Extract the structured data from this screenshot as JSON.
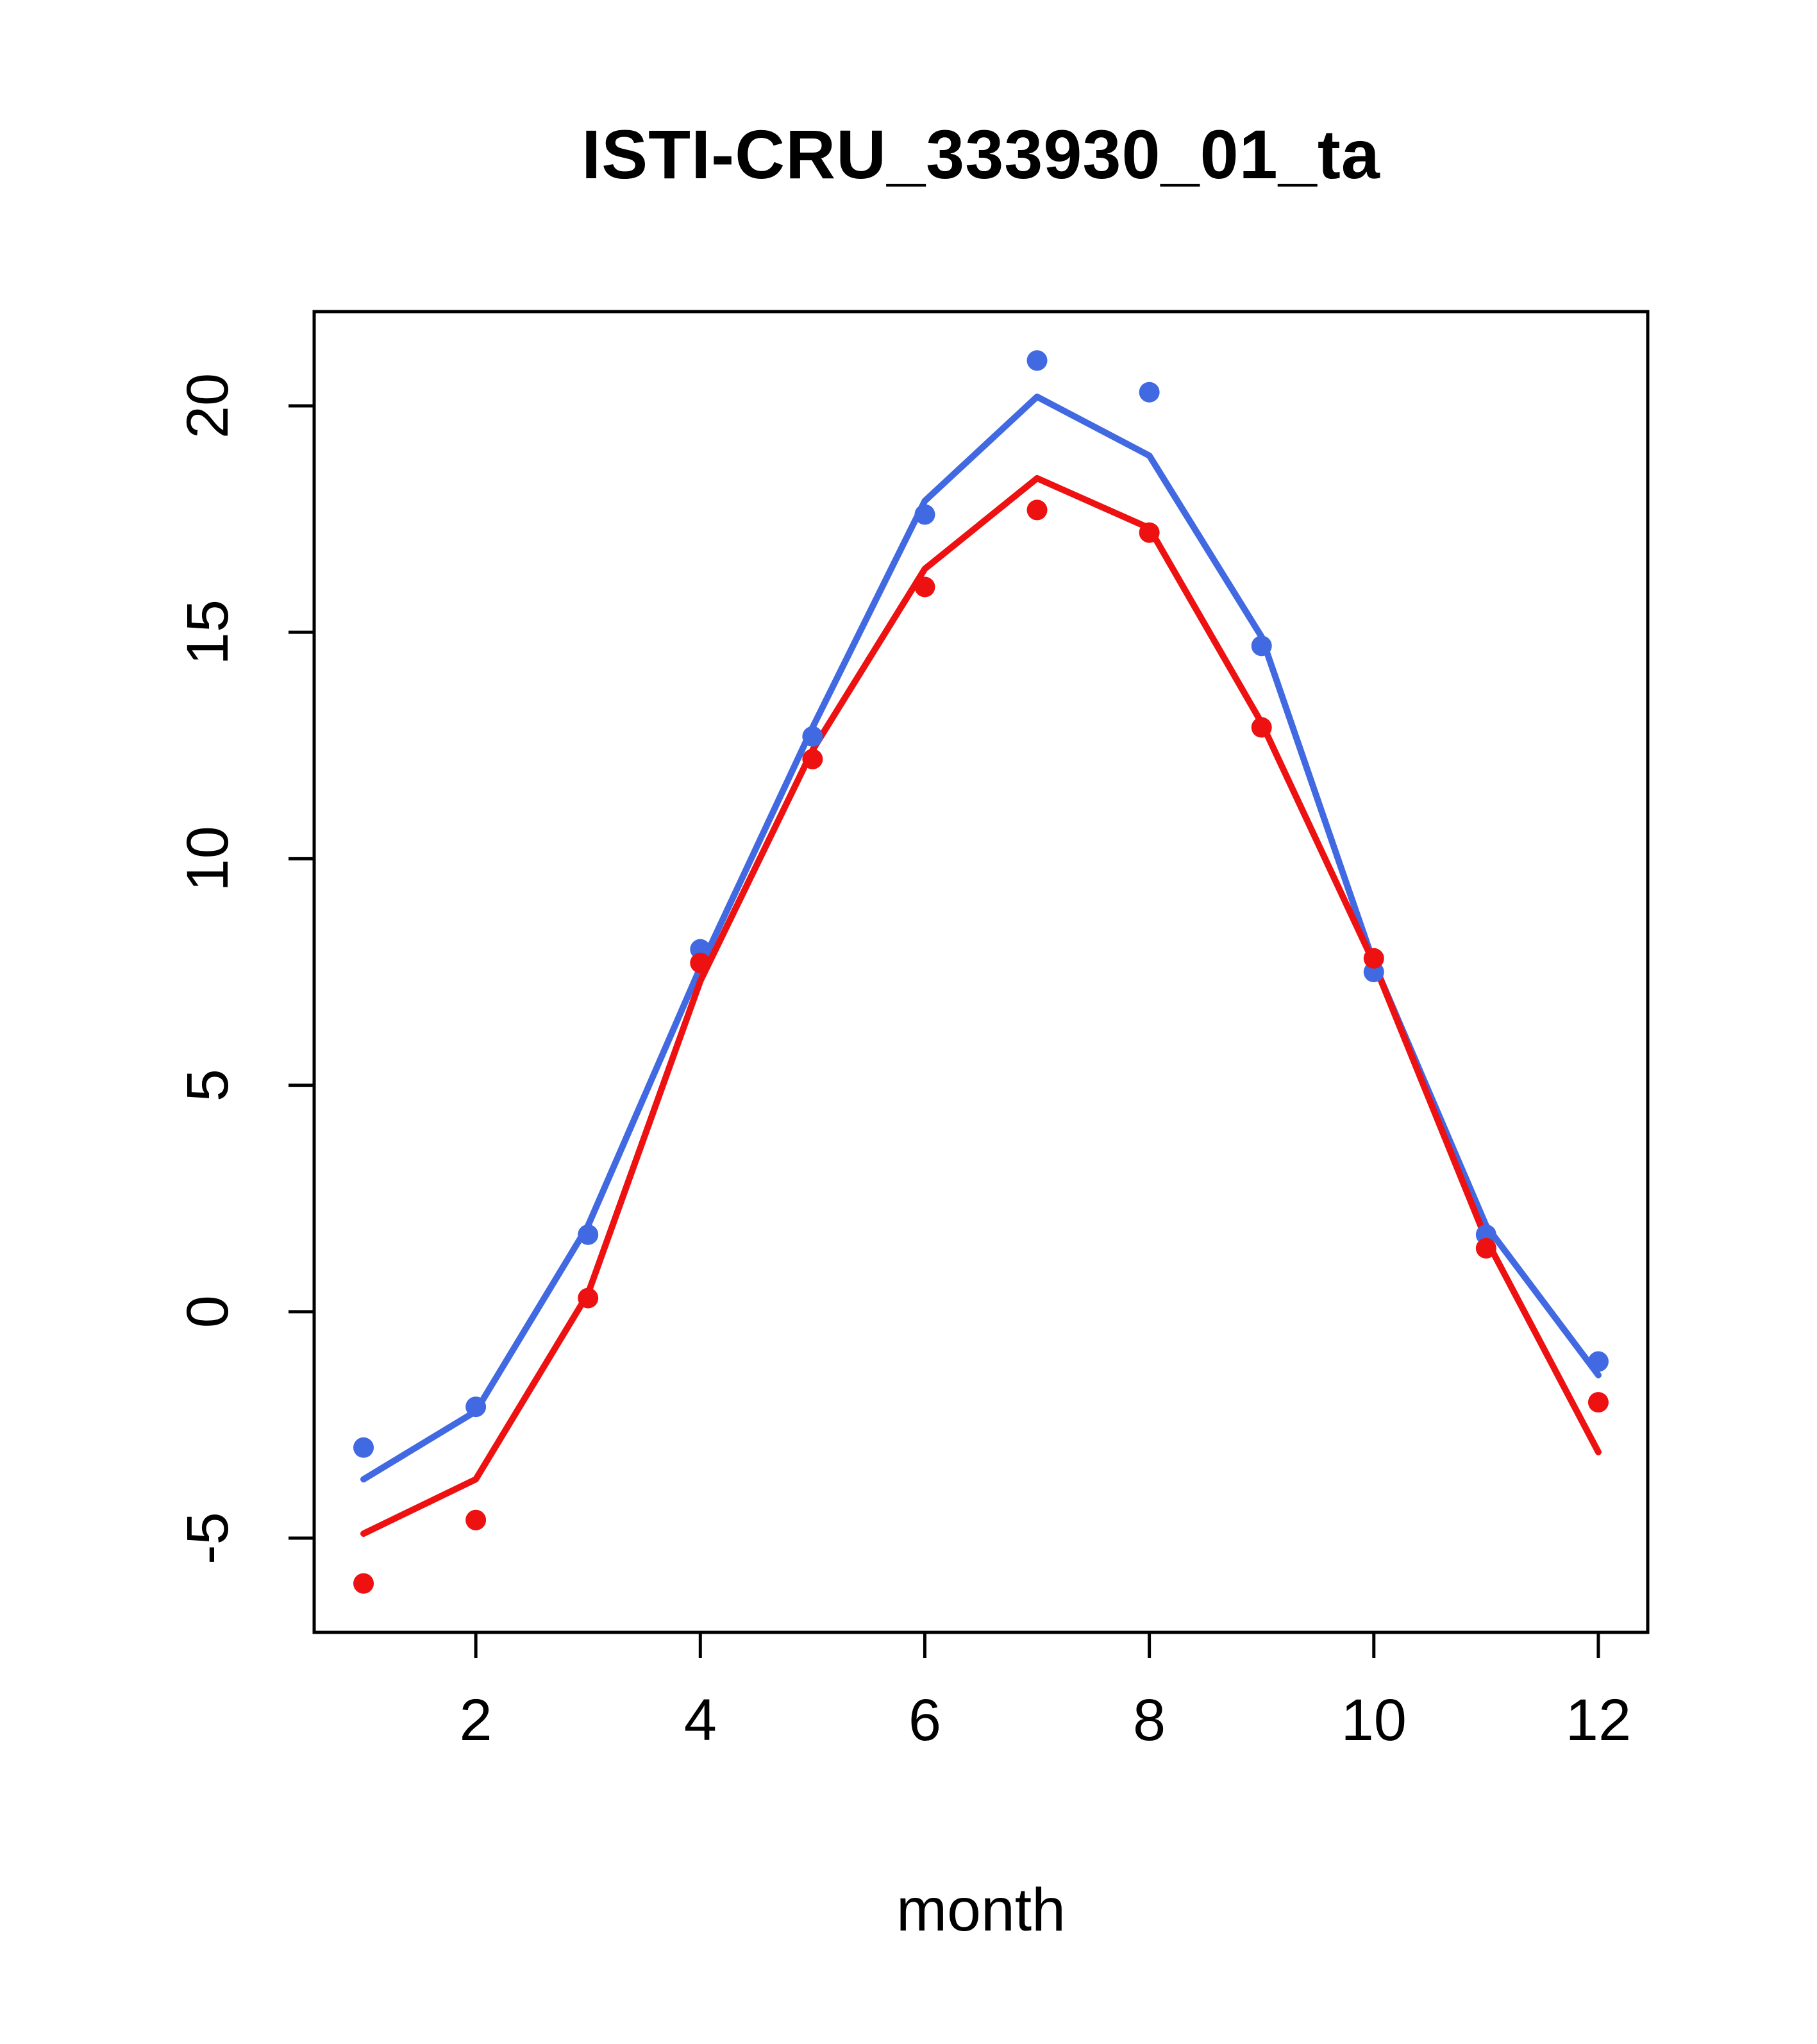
{
  "chart_data": {
    "type": "line-scatter",
    "title": "ISTI-CRU_333930_01_ta",
    "xlabel": "month",
    "ylabel": "",
    "x": [
      1,
      2,
      3,
      4,
      5,
      6,
      7,
      8,
      9,
      10,
      11,
      12
    ],
    "xticks": [
      2,
      4,
      6,
      8,
      10,
      12
    ],
    "yticks": [
      -5,
      0,
      5,
      10,
      15,
      20
    ],
    "xlim": [
      0.56,
      12.44
    ],
    "ylim": [
      -7.08,
      22.08
    ],
    "grid": false,
    "legend": "none",
    "colors": {
      "blue": "#4169E1",
      "red": "#EE1111",
      "axis": "#000000",
      "background": "#FFFFFF"
    },
    "series": [
      {
        "name": "blue-line",
        "kind": "line",
        "color": "#4169E1",
        "values": [
          -3.7,
          -2.2,
          1.9,
          7.6,
          12.9,
          17.9,
          20.2,
          18.9,
          14.9,
          7.7,
          1.9,
          -1.4
        ]
      },
      {
        "name": "red-line",
        "kind": "line",
        "color": "#EE1111",
        "values": [
          -4.9,
          -3.7,
          0.4,
          7.3,
          12.4,
          16.4,
          18.4,
          17.3,
          13.0,
          7.7,
          1.6,
          -3.1
        ]
      },
      {
        "name": "blue-points",
        "kind": "scatter",
        "color": "#4169E1",
        "values": [
          -3.0,
          -2.1,
          1.7,
          8.0,
          12.7,
          17.6,
          21.0,
          20.3,
          14.7,
          7.5,
          1.7,
          -1.1
        ]
      },
      {
        "name": "red-points",
        "kind": "scatter",
        "color": "#EE1111",
        "values": [
          -6.0,
          -4.6,
          0.3,
          7.7,
          12.2,
          16.0,
          17.7,
          17.2,
          12.9,
          7.8,
          1.4,
          -2.0
        ]
      }
    ]
  }
}
